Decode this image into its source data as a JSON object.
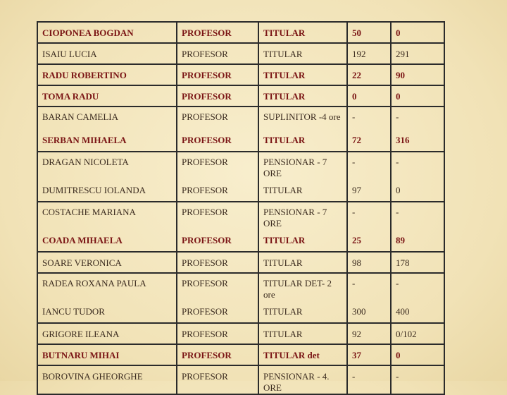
{
  "table": {
    "rows": [
      [
        "CIOPONEA BOGDAN",
        "PROFESOR",
        "TITULAR",
        "50",
        "0"
      ],
      [
        "ISAIU LUCIA",
        "PROFESOR",
        "TITULAR",
        "192",
        "291"
      ],
      [
        "RADU ROBERTINO",
        "PROFESOR",
        "TITULAR",
        "22",
        "90"
      ],
      [
        "TOMA RADU",
        "PROFESOR",
        "TITULAR",
        "0",
        "0"
      ],
      [
        "BARAN CAMELIA",
        "PROFESOR",
        "SUPLINITOR -4 ore",
        "-",
        "-"
      ],
      [
        "SERBAN MIHAELA",
        "PROFESOR",
        "TITULAR",
        "72",
        "316"
      ],
      [
        "DRAGAN NICOLETA",
        "PROFESOR",
        "PENSIONAR - 7 ORE",
        "-",
        "-"
      ],
      [
        "DUMITRESCU IOLANDA",
        "PROFESOR",
        "TITULAR",
        "97",
        "0"
      ],
      [
        "COSTACHE MARIANA",
        "PROFESOR",
        "PENSIONAR - 7 ORE",
        "-",
        "-"
      ],
      [
        "COADA  MIHAELA",
        "PROFESOR",
        "TITULAR",
        "25",
        "89"
      ],
      [
        "SOARE VERONICA",
        "PROFESOR",
        "TITULAR",
        "98",
        "178"
      ],
      [
        "RADEA ROXANA PAULA",
        "PROFESOR",
        "TITULAR DET- 2 ore",
        "-",
        "-"
      ],
      [
        "IANCU TUDOR",
        "PROFESOR",
        "TITULAR",
        "300",
        "400"
      ],
      [
        "GRIGORE ILEANA",
        "PROFESOR",
        "TITULAR",
        "92",
        "0/102"
      ],
      [
        "BUTNARU MIHAI",
        "PROFESOR",
        "TITULAR det",
        "37",
        "0"
      ],
      [
        "BOROVINA GHEORGHE",
        "PROFESOR",
        "PENSIONAR - 4. ORE",
        "-",
        "-"
      ]
    ]
  }
}
